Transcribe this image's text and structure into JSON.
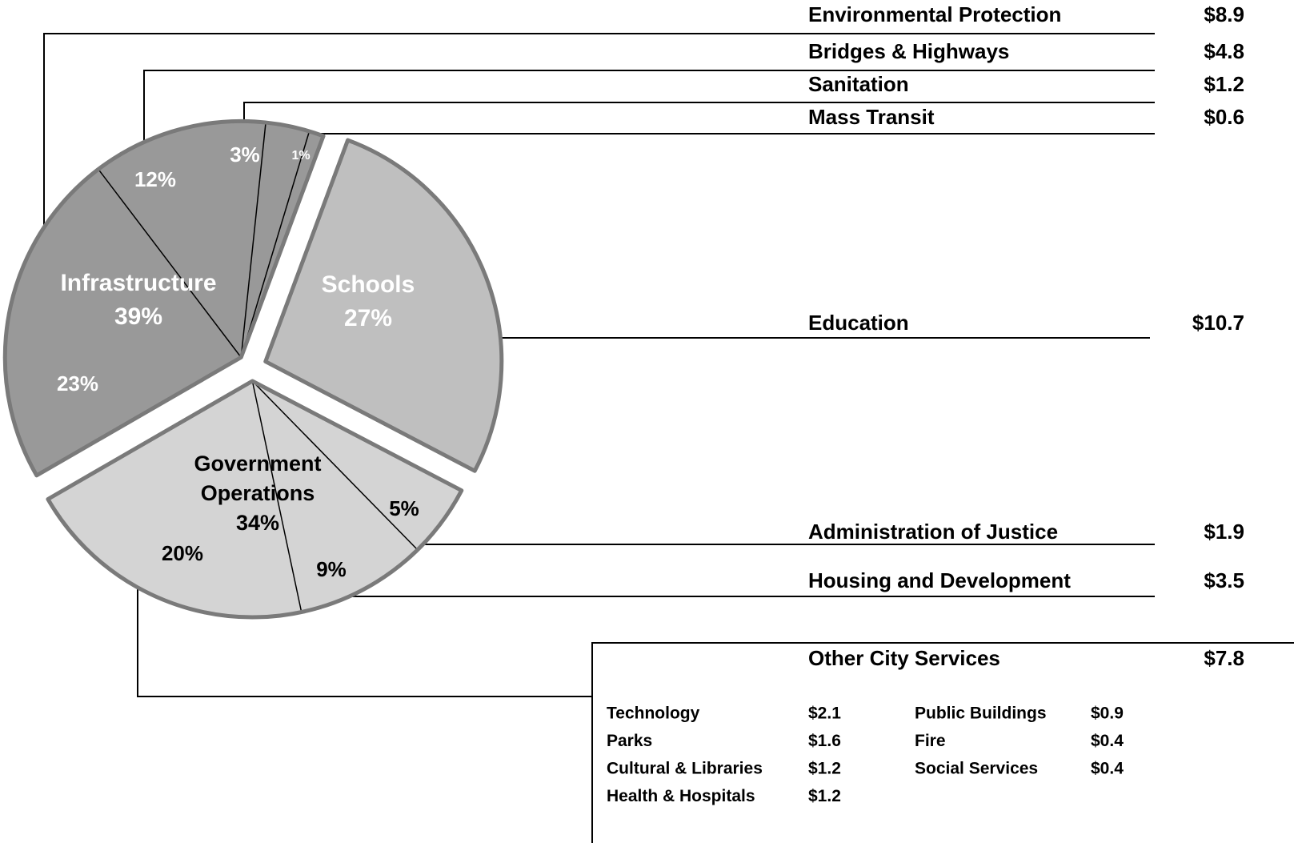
{
  "chart_data": {
    "type": "pie",
    "groups": [
      {
        "name": "Infrastructure",
        "value": 39,
        "value_label": "39%",
        "color": "#999999",
        "text_color": "#ffffff",
        "slices": [
          {
            "name": "Environmental Protection",
            "value": 23,
            "value_label": "23%",
            "amount": 8.9,
            "amount_label": "$8.9"
          },
          {
            "name": "Bridges & Highways",
            "value": 12,
            "value_label": "12%",
            "amount": 4.8,
            "amount_label": "$4.8"
          },
          {
            "name": "Sanitation",
            "value": 3,
            "value_label": "3%",
            "amount": 1.2,
            "amount_label": "$1.2"
          },
          {
            "name": "Mass Transit",
            "value": 1,
            "value_label": "1%",
            "amount": 0.6,
            "amount_label": "$0.6"
          }
        ]
      },
      {
        "name": "Schools",
        "value": 27,
        "value_label": "27%",
        "color": "#bfbfbf",
        "text_color": "#ffffff",
        "slices": [
          {
            "name": "Education",
            "amount": 10.7,
            "amount_label": "$10.7"
          }
        ]
      },
      {
        "name": "Government Operations",
        "value": 34,
        "value_label": "34%",
        "color": "#d4d4d4",
        "text_color": "#000000",
        "slices": [
          {
            "name": "Administration of Justice",
            "value": 5,
            "value_label": "5%",
            "amount": 1.9,
            "amount_label": "$1.9"
          },
          {
            "name": "Housing and Development",
            "value": 9,
            "value_label": "9%",
            "amount": 3.5,
            "amount_label": "$3.5"
          },
          {
            "name": "Other City Services",
            "value": 20,
            "value_label": "20%",
            "amount": 7.8,
            "amount_label": "$7.8",
            "details": [
              {
                "name": "Technology",
                "amount": 2.1,
                "amount_label": "$2.1"
              },
              {
                "name": "Parks",
                "amount": 1.6,
                "amount_label": "$1.6"
              },
              {
                "name": "Cultural & Libraries",
                "amount": 1.2,
                "amount_label": "$1.2"
              },
              {
                "name": "Health & Hospitals",
                "amount": 1.2,
                "amount_label": "$1.2"
              },
              {
                "name": "Public Buildings",
                "amount": 0.9,
                "amount_label": "$0.9"
              },
              {
                "name": "Fire",
                "amount": 0.4,
                "amount_label": "$0.4"
              },
              {
                "name": "Social Services",
                "amount": 0.4,
                "amount_label": "$0.4"
              }
            ]
          }
        ]
      }
    ]
  }
}
